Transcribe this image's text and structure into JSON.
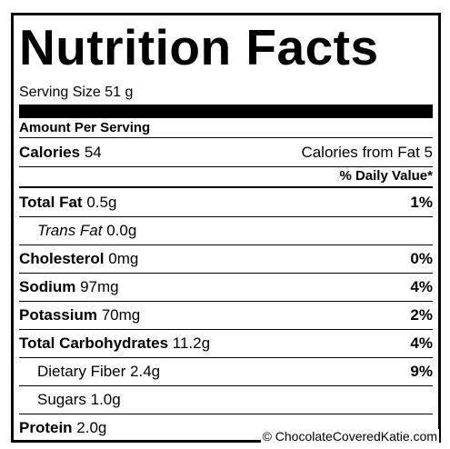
{
  "title": "Nutrition Facts",
  "serving_size": "Serving Size 51 g",
  "amount_header": "Amount Per Serving",
  "calories": {
    "label": "Calories",
    "value": "54",
    "from_fat": "Calories from Fat 5"
  },
  "daily_value_header": "% Daily Value*",
  "rows": [
    {
      "name": "Total Fat",
      "amount": "0.5g",
      "daily_value": "1%",
      "sub": [
        {
          "name": "Trans Fat",
          "amount": "0.0g"
        }
      ]
    },
    {
      "name": "Cholesterol",
      "amount": "0mg",
      "daily_value": "0%"
    },
    {
      "name": "Sodium",
      "amount": "97mg",
      "daily_value": "4%"
    },
    {
      "name": "Potassium",
      "amount": "70mg",
      "daily_value": "2%"
    },
    {
      "name": "Total Carbohydrates",
      "amount": "11.2g",
      "daily_value": "4%",
      "sub": [
        {
          "name": "Dietary Fiber",
          "amount": "2.4g",
          "daily_value": "9%"
        },
        {
          "name": "Sugars",
          "amount": "1.0g"
        }
      ]
    },
    {
      "name": "Protein",
      "amount": "2.0g"
    }
  ],
  "watermark": "© ChocolateCoveredKatie.com"
}
